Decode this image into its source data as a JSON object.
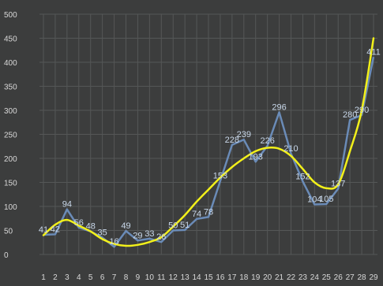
{
  "chart_data": {
    "type": "line",
    "title": "",
    "xlabel": "",
    "ylabel": "",
    "ylim": [
      0,
      500
    ],
    "yticks": [
      0,
      50,
      100,
      150,
      200,
      250,
      300,
      350,
      400,
      450,
      500
    ],
    "x": [
      1,
      2,
      3,
      4,
      5,
      6,
      7,
      8,
      9,
      10,
      11,
      12,
      13,
      14,
      15,
      16,
      17,
      18,
      19,
      20,
      21,
      22,
      23,
      24,
      25,
      26,
      27,
      28,
      29
    ],
    "grid": true,
    "legend": "none",
    "series": [
      {
        "type": "line",
        "color": "#6f93c4",
        "values": [
          41,
          42,
          94,
          56,
          48,
          35,
          16,
          49,
          29,
          33,
          26,
          50,
          51,
          74,
          78,
          153,
          228,
          239,
          193,
          226,
          296,
          210,
          152,
          104,
          105,
          137,
          280,
          290,
          411
        ],
        "labels": [
          "41",
          "42",
          "94",
          "56",
          "48",
          "35",
          "16",
          "49",
          "29",
          "33",
          "26",
          "50",
          "51",
          "74",
          "78",
          "153",
          "228",
          "239",
          "193",
          "226",
          "296",
          "210",
          "152",
          "104",
          "105",
          "137",
          "280",
          "290",
          "411"
        ]
      },
      {
        "type": "trendline",
        "color": "#f2f01a",
        "values": [
          40,
          62,
          72,
          60,
          48,
          32,
          22,
          18,
          20,
          26,
          36,
          58,
          82,
          110,
          135,
          160,
          182,
          200,
          215,
          222,
          220,
          205,
          178,
          150,
          138,
          146,
          215,
          300,
          450
        ]
      }
    ]
  }
}
